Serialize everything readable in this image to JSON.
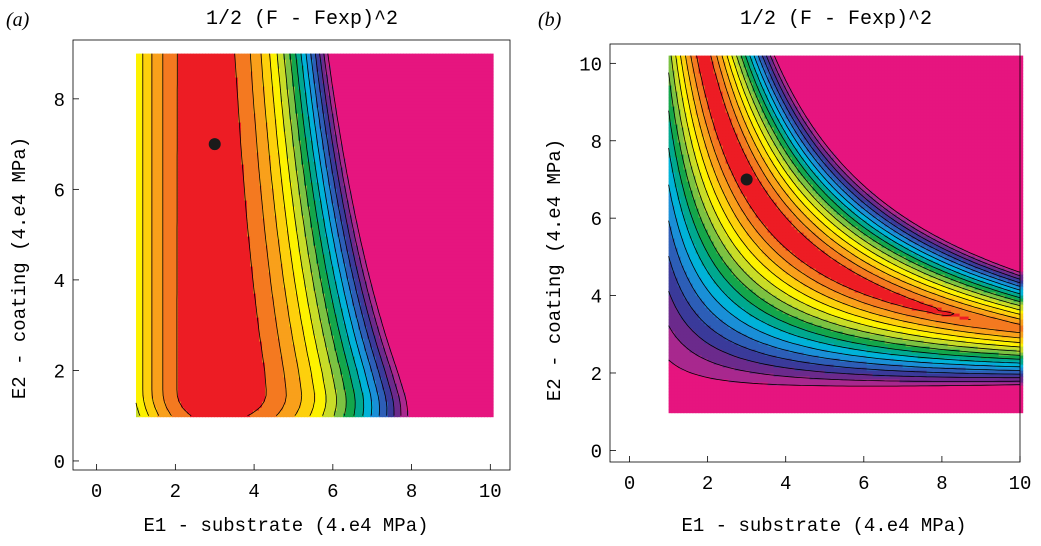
{
  "chart_data": [
    {
      "type": "heatmap",
      "panel_label": "(a)",
      "title": "1/2 (F - Fexp)^2",
      "xlabel": "E1 - substrate (4.e4 MPa)",
      "ylabel": "E2 - coating (4.e4 MPa)",
      "xlim": [
        -0.6,
        10.5
      ],
      "ylim": [
        -0.2,
        9.3
      ],
      "data_extent": {
        "x": [
          1,
          10
        ],
        "y": [
          1,
          9
        ]
      },
      "xticks": [
        0,
        2,
        4,
        6,
        8,
        10
      ],
      "yticks": [
        0,
        2,
        4,
        6,
        8
      ],
      "marked_point": {
        "x": 3,
        "y": 7
      },
      "colors_low_to_high": [
        "#ed1c24",
        "#f47920",
        "#f9a01b",
        "#fdd00c",
        "#fdf200",
        "#c8dc28",
        "#7cc242",
        "#14a64b",
        "#00a88f",
        "#00b2d8",
        "#1a8fd7",
        "#2d5eb7",
        "#3a3a9a",
        "#6b2a8c",
        "#a8288e",
        "#e6157f"
      ]
    },
    {
      "type": "heatmap",
      "panel_label": "(b)",
      "title": "1/2 (F - Fexp)^2",
      "xlabel": "E1 - substrate (4.e4 MPa)",
      "ylabel": "E2 - coating (4.e4 MPa)",
      "xlim": [
        -0.5,
        10
      ],
      "ylim": [
        -0.3,
        10.5
      ],
      "data_extent": {
        "x": [
          1,
          10
        ],
        "y": [
          1,
          10.2
        ]
      },
      "xticks": [
        0,
        2,
        4,
        6,
        8,
        10
      ],
      "yticks": [
        0,
        2,
        4,
        6,
        8,
        10
      ],
      "marked_point": {
        "x": 3,
        "y": 7
      },
      "colors_low_to_high": [
        "#ed1c24",
        "#f47920",
        "#f9a01b",
        "#fdd00c",
        "#fdf200",
        "#c8dc28",
        "#7cc242",
        "#14a64b",
        "#00a88f",
        "#00b2d8",
        "#1a8fd7",
        "#2d5eb7",
        "#3a3a9a",
        "#6b2a8c",
        "#a8288e",
        "#e6157f"
      ]
    }
  ]
}
